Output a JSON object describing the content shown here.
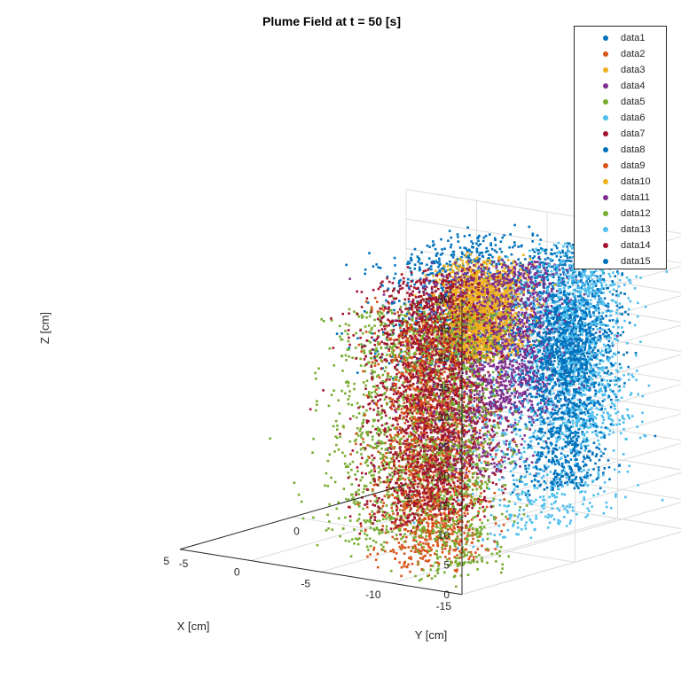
{
  "chart_data": {
    "type": "scatter",
    "title": "Plume Field at t = 50 [s]",
    "xlabel": "X [cm]",
    "ylabel": "Y [cm]",
    "zlabel": "Z [cm]",
    "xlim": [
      -15,
      5
    ],
    "ylim": [
      -5,
      5
    ],
    "zlim": [
      0,
      50
    ],
    "xticks": [
      "-15",
      "-10",
      "-5",
      "0",
      "5"
    ],
    "yticks": [
      "-5",
      "0",
      "5"
    ],
    "zticks": [
      "0",
      "5",
      "10",
      "15",
      "20",
      "25",
      "30",
      "35",
      "40",
      "45",
      "50"
    ],
    "grid": true,
    "legend_position": "top-right",
    "series": [
      {
        "name": "data1",
        "color": "#0072BD",
        "x_center": -6.0,
        "y_center": 0.5,
        "spread_x": 2.4,
        "spread_y": 2.4,
        "z_range": [
          30,
          50
        ]
      },
      {
        "name": "data2",
        "color": "#D95319",
        "x_center": -9.0,
        "y_center": -2.5,
        "spread_x": 2.6,
        "spread_y": 1.6,
        "z_range": [
          0,
          45
        ]
      },
      {
        "name": "data3",
        "color": "#EDB120",
        "x_center": -9.5,
        "y_center": -1.0,
        "spread_x": 1.6,
        "spread_y": 1.2,
        "z_range": [
          35,
          50
        ]
      },
      {
        "name": "data4",
        "color": "#7E2F8E",
        "x_center": -6.0,
        "y_center": 1.0,
        "spread_x": 2.6,
        "spread_y": 2.0,
        "z_range": [
          10,
          45
        ]
      },
      {
        "name": "data5",
        "color": "#77AC30",
        "x_center": -3.5,
        "y_center": -1.0,
        "spread_x": 2.4,
        "spread_y": 1.8,
        "z_range": [
          0,
          40
        ]
      },
      {
        "name": "data6",
        "color": "#4DBEEE",
        "x_center": -13.0,
        "y_center": 0.0,
        "spread_x": 1.2,
        "spread_y": 2.6,
        "z_range": [
          5,
          48
        ]
      },
      {
        "name": "data7",
        "color": "#A2142F",
        "x_center": -2.0,
        "y_center": 1.5,
        "spread_x": 2.4,
        "spread_y": 2.0,
        "z_range": [
          0,
          42
        ]
      },
      {
        "name": "data8",
        "color": "#0072BD",
        "x_center": -9.5,
        "y_center": 3.0,
        "spread_x": 1.8,
        "spread_y": 1.4,
        "z_range": [
          25,
          48
        ]
      },
      {
        "name": "data9",
        "color": "#D95319",
        "x_center": -8.0,
        "y_center": -2.0,
        "spread_x": 2.0,
        "spread_y": 1.4,
        "z_range": [
          0,
          40
        ]
      },
      {
        "name": "data10",
        "color": "#EDB120",
        "x_center": -11.0,
        "y_center": -1.5,
        "spread_x": 1.4,
        "spread_y": 1.2,
        "z_range": [
          35,
          48
        ]
      },
      {
        "name": "data11",
        "color": "#7E2F8E",
        "x_center": -7.5,
        "y_center": 2.0,
        "spread_x": 2.0,
        "spread_y": 1.6,
        "z_range": [
          20,
          45
        ]
      },
      {
        "name": "data12",
        "color": "#77AC30",
        "x_center": -11.5,
        "y_center": -3.0,
        "spread_x": 1.8,
        "spread_y": 1.4,
        "z_range": [
          0,
          45
        ]
      },
      {
        "name": "data13",
        "color": "#4DBEEE",
        "x_center": -10.0,
        "y_center": 3.5,
        "spread_x": 2.0,
        "spread_y": 1.2,
        "z_range": [
          15,
          48
        ]
      },
      {
        "name": "data14",
        "color": "#A2142F",
        "x_center": -1.0,
        "y_center": 2.5,
        "spread_x": 2.0,
        "spread_y": 1.6,
        "z_range": [
          0,
          40
        ]
      },
      {
        "name": "data15",
        "color": "#0072BD",
        "x_center": -12.0,
        "y_center": 1.5,
        "spread_x": 1.4,
        "spread_y": 1.4,
        "z_range": [
          10,
          40
        ]
      }
    ]
  }
}
